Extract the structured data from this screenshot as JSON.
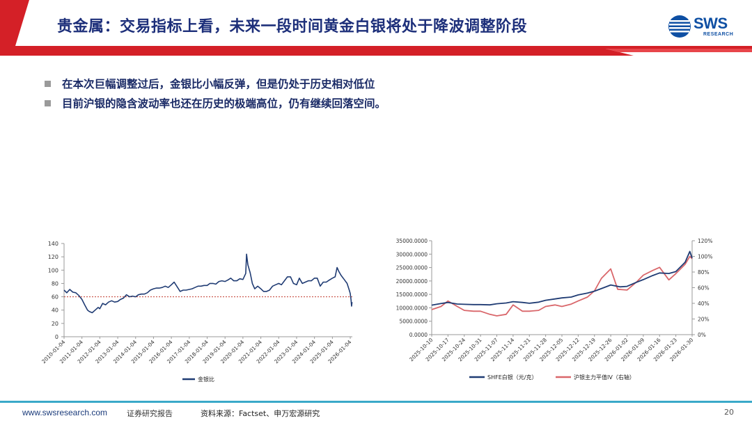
{
  "header": {
    "title": "贵金属：交易指标上看，未来一段时间黄金白银将处于降波调整阶段",
    "logo": {
      "text": "SWS",
      "subtext": "RESEARCH",
      "icon": "sws-globe-icon"
    }
  },
  "bullets": [
    "在本次巨幅调整过后，金银比小幅反弹，但是仍处于历史相对低位",
    "目前沪银的隐含波动率也还在历史的极端高位，仍有继续回落空间。"
  ],
  "colors": {
    "red": "#d42027",
    "navy": "#1d2f7a",
    "series_navy": "#1f3b73",
    "series_red": "#d9666a",
    "reference_line": "#c0392b",
    "footer_teal": "#3aa9c9"
  },
  "chart_data": [
    {
      "type": "line",
      "title": "",
      "xlabel": "",
      "ylabel": "",
      "ylim": [
        0,
        140
      ],
      "yticks": [
        0,
        20,
        40,
        60,
        80,
        100,
        120,
        140
      ],
      "xticks": [
        "2010-01-04",
        "2011-01-04",
        "2012-01-04",
        "2013-01-04",
        "2014-01-04",
        "2015-01-04",
        "2016-01-04",
        "2017-01-04",
        "2018-01-04",
        "2019-01-04",
        "2020-01-04",
        "2021-01-04",
        "2022-01-04",
        "2023-01-04",
        "2024-01-04",
        "2025-01-04",
        "2026-01-04"
      ],
      "x_range": [
        "2010-01-04",
        "2026-02-15"
      ],
      "reference_line": {
        "y": 60,
        "style": "dashed"
      },
      "legend_position": "bottom-left",
      "grid": false,
      "series": [
        {
          "name": "金银比",
          "points": [
            [
              "2010-01-04",
              70
            ],
            [
              "2010-03-01",
              66
            ],
            [
              "2010-05-01",
              71
            ],
            [
              "2010-07-01",
              67
            ],
            [
              "2010-09-01",
              66
            ],
            [
              "2010-11-01",
              62
            ],
            [
              "2011-01-04",
              56
            ],
            [
              "2011-03-01",
              48
            ],
            [
              "2011-04-28",
              40
            ],
            [
              "2011-06-01",
              38
            ],
            [
              "2011-08-01",
              36
            ],
            [
              "2011-10-01",
              40
            ],
            [
              "2011-12-01",
              44
            ],
            [
              "2012-01-04",
              42
            ],
            [
              "2012-03-01",
              50
            ],
            [
              "2012-05-01",
              48
            ],
            [
              "2012-07-01",
              52
            ],
            [
              "2012-09-01",
              54
            ],
            [
              "2012-11-01",
              52
            ],
            [
              "2013-01-04",
              53
            ],
            [
              "2013-03-01",
              56
            ],
            [
              "2013-05-01",
              58
            ],
            [
              "2013-07-01",
              63
            ],
            [
              "2013-09-01",
              60
            ],
            [
              "2013-11-01",
              61
            ],
            [
              "2014-01-04",
              60
            ],
            [
              "2014-03-01",
              63
            ],
            [
              "2014-05-01",
              64
            ],
            [
              "2014-07-01",
              64
            ],
            [
              "2014-09-01",
              66
            ],
            [
              "2014-11-01",
              70
            ],
            [
              "2015-01-04",
              72
            ],
            [
              "2015-03-01",
              73
            ],
            [
              "2015-05-01",
              73
            ],
            [
              "2015-07-01",
              74
            ],
            [
              "2015-09-01",
              76
            ],
            [
              "2015-11-01",
              74
            ],
            [
              "2016-01-04",
              78
            ],
            [
              "2016-03-01",
              82
            ],
            [
              "2016-05-01",
              75
            ],
            [
              "2016-07-01",
              68
            ],
            [
              "2016-09-01",
              70
            ],
            [
              "2016-11-01",
              70
            ],
            [
              "2017-01-04",
              71
            ],
            [
              "2017-03-01",
              72
            ],
            [
              "2017-05-01",
              74
            ],
            [
              "2017-07-01",
              76
            ],
            [
              "2017-09-01",
              76
            ],
            [
              "2017-11-01",
              77
            ],
            [
              "2018-01-04",
              77
            ],
            [
              "2018-03-01",
              80
            ],
            [
              "2018-05-01",
              80
            ],
            [
              "2018-07-01",
              79
            ],
            [
              "2018-09-01",
              83
            ],
            [
              "2018-11-01",
              84
            ],
            [
              "2019-01-04",
              83
            ],
            [
              "2019-03-01",
              85
            ],
            [
              "2019-05-01",
              88
            ],
            [
              "2019-07-01",
              84
            ],
            [
              "2019-09-01",
              84
            ],
            [
              "2019-11-01",
              87
            ],
            [
              "2020-01-04",
              86
            ],
            [
              "2020-03-01",
              95
            ],
            [
              "2020-03-18",
              124
            ],
            [
              "2020-04-15",
              108
            ],
            [
              "2020-06-01",
              96
            ],
            [
              "2020-07-15",
              80
            ],
            [
              "2020-09-01",
              72
            ],
            [
              "2020-11-01",
              76
            ],
            [
              "2021-01-04",
              72
            ],
            [
              "2021-03-01",
              68
            ],
            [
              "2021-05-01",
              68
            ],
            [
              "2021-07-01",
              70
            ],
            [
              "2021-09-01",
              76
            ],
            [
              "2021-11-01",
              78
            ],
            [
              "2022-01-04",
              80
            ],
            [
              "2022-03-01",
              78
            ],
            [
              "2022-05-01",
              84
            ],
            [
              "2022-07-01",
              90
            ],
            [
              "2022-09-01",
              90
            ],
            [
              "2022-11-01",
              80
            ],
            [
              "2023-01-04",
              78
            ],
            [
              "2023-03-01",
              88
            ],
            [
              "2023-05-01",
              80
            ],
            [
              "2023-07-01",
              82
            ],
            [
              "2023-09-01",
              84
            ],
            [
              "2023-11-01",
              84
            ],
            [
              "2024-01-04",
              88
            ],
            [
              "2024-03-01",
              88
            ],
            [
              "2024-05-01",
              76
            ],
            [
              "2024-07-01",
              82
            ],
            [
              "2024-09-01",
              82
            ],
            [
              "2024-11-01",
              85
            ],
            [
              "2025-01-04",
              88
            ],
            [
              "2025-03-01",
              90
            ],
            [
              "2025-04-10",
              104
            ],
            [
              "2025-05-15",
              98
            ],
            [
              "2025-07-01",
              92
            ],
            [
              "2025-09-01",
              86
            ],
            [
              "2025-11-01",
              80
            ],
            [
              "2025-12-15",
              70
            ],
            [
              "2026-01-04",
              65
            ],
            [
              "2026-01-20",
              55
            ],
            [
              "2026-01-30",
              46
            ],
            [
              "2026-02-10",
              52
            ]
          ]
        }
      ]
    },
    {
      "type": "line",
      "title": "",
      "xlabel": "",
      "ylabel": "",
      "ylim": [
        0,
        35000
      ],
      "yticks": [
        "0.0000",
        "5000.0000",
        "10000.0000",
        "15000.0000",
        "20000.0000",
        "25000.0000",
        "30000.0000",
        "35000.0000"
      ],
      "y2lim": [
        0,
        1.2
      ],
      "y2ticks": [
        "0%",
        "20%",
        "40%",
        "60%",
        "80%",
        "100%",
        "120%"
      ],
      "x_range": [
        "2025-10-10",
        "2026-01-30"
      ],
      "xticks": [
        "2025-10-10",
        "2025-10-17",
        "2025-10-24",
        "2025-10-31",
        "2025-11-07",
        "2025-11-14",
        "2025-11-21",
        "2025-11-28",
        "2025-12-05",
        "2025-12-12",
        "2025-12-19",
        "2025-12-26",
        "2026-01-02",
        "2026-01-09",
        "2026-01-16",
        "2026-01-23",
        "2026-01-30"
      ],
      "legend_position": "bottom",
      "grid": false,
      "series": [
        {
          "name": "SHFE白银（元/克）",
          "axis": "left",
          "points": [
            [
              "2025-10-10",
              11000
            ],
            [
              "2025-10-14",
              11600
            ],
            [
              "2025-10-17",
              12000
            ],
            [
              "2025-10-21",
              11400
            ],
            [
              "2025-10-24",
              11300
            ],
            [
              "2025-10-28",
              11200
            ],
            [
              "2025-10-31",
              11200
            ],
            [
              "2025-11-04",
              11100
            ],
            [
              "2025-11-07",
              11500
            ],
            [
              "2025-11-11",
              11800
            ],
            [
              "2025-11-14",
              12300
            ],
            [
              "2025-11-18",
              12000
            ],
            [
              "2025-11-21",
              11700
            ],
            [
              "2025-11-25",
              12100
            ],
            [
              "2025-11-28",
              12800
            ],
            [
              "2025-12-02",
              13300
            ],
            [
              "2025-12-05",
              13700
            ],
            [
              "2025-12-09",
              14000
            ],
            [
              "2025-12-12",
              14800
            ],
            [
              "2025-12-16",
              15500
            ],
            [
              "2025-12-19",
              16200
            ],
            [
              "2025-12-23",
              17500
            ],
            [
              "2025-12-26",
              18500
            ],
            [
              "2025-12-30",
              17800
            ],
            [
              "2026-01-02",
              18000
            ],
            [
              "2026-01-06",
              19500
            ],
            [
              "2026-01-09",
              20500
            ],
            [
              "2026-01-13",
              22000
            ],
            [
              "2026-01-16",
              23000
            ],
            [
              "2026-01-20",
              22800
            ],
            [
              "2026-01-23",
              23500
            ],
            [
              "2026-01-27",
              27000
            ],
            [
              "2026-01-29",
              31000
            ],
            [
              "2026-01-30",
              28500
            ]
          ]
        },
        {
          "name": "沪银主力平值IV（右轴）",
          "axis": "right",
          "points": [
            [
              "2025-10-10",
              0.32
            ],
            [
              "2025-10-14",
              0.36
            ],
            [
              "2025-10-17",
              0.43
            ],
            [
              "2025-10-21",
              0.36
            ],
            [
              "2025-10-24",
              0.31
            ],
            [
              "2025-10-28",
              0.3
            ],
            [
              "2025-10-31",
              0.3
            ],
            [
              "2025-11-04",
              0.26
            ],
            [
              "2025-11-07",
              0.24
            ],
            [
              "2025-11-11",
              0.26
            ],
            [
              "2025-11-14",
              0.38
            ],
            [
              "2025-11-18",
              0.3
            ],
            [
              "2025-11-21",
              0.3
            ],
            [
              "2025-11-25",
              0.31
            ],
            [
              "2025-11-28",
              0.36
            ],
            [
              "2025-12-02",
              0.38
            ],
            [
              "2025-12-05",
              0.36
            ],
            [
              "2025-12-09",
              0.39
            ],
            [
              "2025-12-12",
              0.43
            ],
            [
              "2025-12-16",
              0.48
            ],
            [
              "2025-12-19",
              0.56
            ],
            [
              "2025-12-22",
              0.72
            ],
            [
              "2025-12-26",
              0.84
            ],
            [
              "2025-12-29",
              0.58
            ],
            [
              "2026-01-02",
              0.57
            ],
            [
              "2026-01-06",
              0.67
            ],
            [
              "2026-01-09",
              0.76
            ],
            [
              "2026-01-13",
              0.82
            ],
            [
              "2026-01-16",
              0.86
            ],
            [
              "2026-01-20",
              0.7
            ],
            [
              "2026-01-23",
              0.78
            ],
            [
              "2026-01-27",
              0.9
            ],
            [
              "2026-01-29",
              1.0
            ],
            [
              "2026-01-30",
              0.97
            ]
          ]
        }
      ]
    }
  ],
  "footer": {
    "website": "www.swsresearch.com",
    "subtitle": "证券研究报告",
    "source": "资料来源：Factset、申万宏源研究",
    "page": "20"
  }
}
